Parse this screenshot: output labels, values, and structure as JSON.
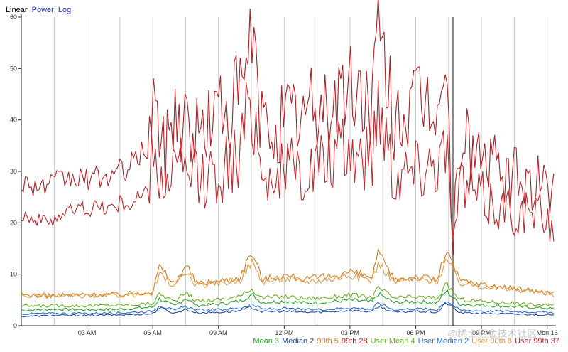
{
  "scale_options": {
    "active": "Linear",
    "links": [
      "Power",
      "Log"
    ]
  },
  "watermark": "@稀土掘金技术社区",
  "colors": {
    "axis": "#222222",
    "grid": "#cccccc",
    "cursor": "#888888",
    "link": "#1a33cc"
  },
  "chart_data": {
    "type": "line",
    "title": "",
    "xlabel": "",
    "ylabel": "",
    "ylim": [
      0,
      60
    ],
    "y_ticks": [
      0,
      10,
      20,
      30,
      40,
      50,
      60
    ],
    "x_range_hours": [
      0,
      24.4
    ],
    "x_ticks": [
      {
        "hour": 3,
        "label": "03 AM"
      },
      {
        "hour": 6,
        "label": "06 AM"
      },
      {
        "hour": 9,
        "label": "09 AM"
      },
      {
        "hour": 12,
        "label": "12 PM"
      },
      {
        "hour": 15,
        "label": "03 PM"
      },
      {
        "hour": 18,
        "label": "06 PM"
      },
      {
        "hour": 21,
        "label": "09 PM"
      },
      {
        "hour": 24,
        "label": "Mon 16"
      }
    ],
    "minor_grid_hours": [
      1.5,
      4.5,
      7.5,
      10.5,
      13.5,
      16.5,
      19.5,
      22.5
    ],
    "cursor_hour": 19.7,
    "series": [
      {
        "name": "Mean",
        "legend": "Mean 3",
        "color": "#2ca02c",
        "x": [
          0,
          1.5,
          3,
          4.5,
          6,
          6.3,
          7,
          7.5,
          8,
          9,
          10,
          10.5,
          11,
          12,
          13,
          14,
          15,
          16,
          16.3,
          17,
          18,
          19,
          19.4,
          20,
          21,
          22,
          23,
          24,
          24.3
        ],
        "y": [
          3,
          3.2,
          3.1,
          3.2,
          3.6,
          5.2,
          3.8,
          5.4,
          3.9,
          4.2,
          4.8,
          6.0,
          4.5,
          4.8,
          4.4,
          4.6,
          5.0,
          4.6,
          6.2,
          4.5,
          4.7,
          4.5,
          6.8,
          4.2,
          4.0,
          3.8,
          3.6,
          3.4,
          3.3
        ]
      },
      {
        "name": "Median",
        "legend": "Median 2",
        "color": "#1f4aa8",
        "x": [
          0,
          1.5,
          3,
          4.5,
          6,
          6.3,
          7,
          7.5,
          8,
          9,
          10,
          10.5,
          11,
          12,
          13,
          14,
          15,
          16,
          16.3,
          17,
          18,
          19,
          19.4,
          20,
          21,
          22,
          23,
          24,
          24.3
        ],
        "y": [
          1.8,
          2,
          2,
          2.1,
          2.3,
          3.5,
          2.4,
          3.2,
          2.5,
          2.6,
          2.9,
          3.6,
          2.7,
          2.8,
          2.6,
          2.7,
          3.0,
          2.7,
          3.8,
          2.6,
          2.8,
          2.6,
          4.5,
          2.5,
          2.4,
          2.3,
          2.2,
          2.1,
          2.0
        ]
      },
      {
        "name": "90th",
        "legend": "90th 5",
        "color": "#d27d1e",
        "x": [
          0,
          1.5,
          3,
          4.5,
          6,
          6.3,
          7,
          7.5,
          8,
          9,
          10,
          10.5,
          11,
          12,
          13,
          14,
          15,
          16,
          16.3,
          17,
          18,
          19,
          19.4,
          20,
          21,
          22,
          23,
          24,
          24.3
        ],
        "y": [
          6,
          5.9,
          6,
          6.1,
          6.6,
          11.5,
          8.0,
          12.0,
          8.2,
          8.6,
          9.5,
          14.5,
          9.0,
          9.8,
          9.0,
          9.5,
          10.5,
          9.4,
          14.0,
          9.0,
          9.5,
          9.0,
          15.0,
          8.8,
          8.0,
          7.5,
          7.0,
          6.5,
          6.2
        ]
      },
      {
        "name": "99th",
        "legend": "99th 28",
        "color": "#b02025",
        "x": [
          0,
          1,
          2,
          3,
          4,
          5,
          5.8,
          6,
          6.5,
          7,
          8,
          9,
          10,
          10.5,
          11,
          12,
          13,
          14,
          15,
          16,
          16.3,
          17,
          18,
          19,
          19.4,
          19.7,
          20,
          21,
          22,
          23,
          24,
          24.3
        ],
        "y": [
          28,
          27,
          28.5,
          28.5,
          29,
          31,
          35,
          45,
          33,
          42,
          37,
          42,
          44,
          56,
          38,
          40,
          41,
          43,
          46,
          44,
          55,
          41,
          42,
          44,
          48,
          16,
          37,
          33,
          29,
          28,
          27,
          25
        ]
      },
      {
        "name": "User Mean",
        "legend": "User Mean 4",
        "color": "#6ab023",
        "x": [
          0,
          1.5,
          3,
          4.5,
          6,
          6.3,
          7,
          7.5,
          8,
          9,
          10,
          10.5,
          11,
          12,
          13,
          14,
          15,
          16,
          16.3,
          17,
          18,
          19,
          19.4,
          20,
          21,
          22,
          23,
          24,
          24.3
        ],
        "y": [
          3.8,
          3.9,
          3.9,
          4.0,
          4.3,
          6.2,
          4.7,
          6.4,
          4.8,
          5.1,
          5.7,
          7.2,
          5.4,
          5.7,
          5.3,
          5.5,
          6.0,
          5.5,
          7.4,
          5.4,
          5.6,
          5.4,
          8.0,
          5.1,
          4.8,
          4.5,
          4.2,
          4.0,
          3.9
        ]
      },
      {
        "name": "User Median",
        "legend": "User Median 2",
        "color": "#2d6fc4",
        "x": [
          0,
          1.5,
          3,
          4.5,
          6,
          6.3,
          7,
          7.5,
          8,
          9,
          10,
          10.5,
          11,
          12,
          13,
          14,
          15,
          16,
          16.3,
          17,
          18,
          19,
          19.4,
          20,
          21,
          22,
          23,
          24,
          24.3
        ],
        "y": [
          2.3,
          2.4,
          2.4,
          2.5,
          2.8,
          4.0,
          2.9,
          3.8,
          3.0,
          3.1,
          3.4,
          4.2,
          3.2,
          3.3,
          3.1,
          3.2,
          3.5,
          3.2,
          4.4,
          3.1,
          3.3,
          3.1,
          5.0,
          3.0,
          2.9,
          2.8,
          2.7,
          2.6,
          2.5
        ]
      },
      {
        "name": "User 90th",
        "legend": "User 90th 8",
        "color": "#e09a4a",
        "x": [
          0,
          1.5,
          3,
          4.5,
          6,
          6.3,
          7,
          7.5,
          8,
          9,
          10,
          10.5,
          11,
          12,
          13,
          14,
          15,
          16,
          16.3,
          17,
          18,
          19,
          19.4,
          20,
          21,
          22,
          23,
          24,
          24.3
        ],
        "y": [
          5.8,
          5.7,
          5.8,
          5.9,
          6.3,
          10.0,
          7.6,
          10.5,
          7.8,
          8.2,
          9.0,
          12.5,
          8.6,
          9.2,
          8.6,
          9.0,
          9.8,
          8.9,
          12.2,
          8.6,
          9.0,
          8.6,
          13.0,
          8.3,
          7.7,
          7.2,
          6.8,
          6.3,
          6.0
        ]
      },
      {
        "name": "User 99th",
        "legend": "User 99th 37",
        "color": "#c0282d",
        "x": [
          0,
          1,
          2,
          3,
          4,
          5,
          5.8,
          6,
          6.5,
          7,
          8,
          9,
          10,
          10.5,
          11,
          12,
          13,
          14,
          15,
          16,
          16.3,
          17,
          18,
          19,
          19.4,
          19.7,
          20,
          21,
          22,
          23,
          24,
          24.3
        ],
        "y": [
          22,
          20,
          22,
          23,
          23,
          24,
          26,
          33,
          27,
          31,
          28,
          30,
          33,
          46,
          29,
          30,
          30,
          32,
          34,
          33,
          45,
          30,
          31,
          33,
          36,
          14,
          28,
          25,
          23,
          22,
          21,
          20
        ]
      }
    ]
  }
}
